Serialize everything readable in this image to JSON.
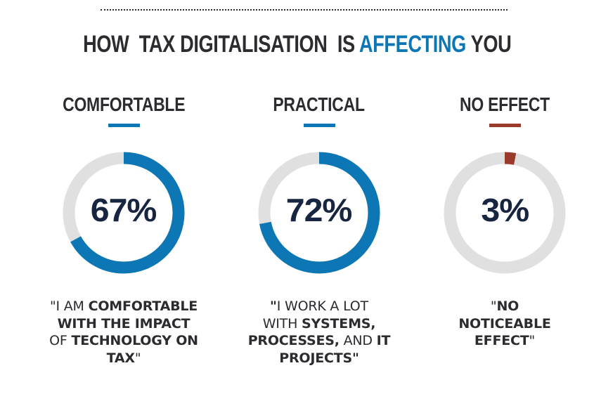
{
  "header": {
    "title_parts": [
      {
        "text": "HOW  TAX DIGITALISATION  IS ",
        "accent": false
      },
      {
        "text": "AFFECTING",
        "accent": true
      },
      {
        "text": " YOU",
        "accent": false
      }
    ]
  },
  "colors": {
    "accent_blue": "#0d77b5",
    "accent_brown": "#9a3a2a",
    "track_gray": "#e0e0e0",
    "heading_dark": "#2b2b30",
    "number_navy": "#172540"
  },
  "chart_data": {
    "type": "pie",
    "title": "HOW TAX DIGITALISATION IS AFFECTING YOU",
    "style": "donut-gauges",
    "series": [
      {
        "name": "COMFORTABLE",
        "value": 67,
        "label": "67%",
        "color": "#0d77b5",
        "quote_lines": [
          [
            {
              "t": "\"I AM ",
              "b": false
            },
            {
              "t": "COMFORTABLE",
              "b": true
            }
          ],
          [
            {
              "t": "WITH THE IMPACT",
              "b": true
            }
          ],
          [
            {
              "t": "OF ",
              "b": false
            },
            {
              "t": "TECHNOLOGY ON",
              "b": true
            }
          ],
          [
            {
              "t": "TAX",
              "b": true
            },
            {
              "t": "\"",
              "b": false
            }
          ]
        ]
      },
      {
        "name": "PRACTICAL",
        "value": 72,
        "label": "72%",
        "color": "#0d77b5",
        "quote_lines": [
          [
            {
              "t": "\"",
              "b": true
            },
            {
              "t": "I WORK A LOT",
              "b": false
            }
          ],
          [
            {
              "t": "WITH ",
              "b": false
            },
            {
              "t": "SYSTEMS,",
              "b": true
            }
          ],
          [
            {
              "t": "PROCESSES,",
              "b": true
            },
            {
              "t": " AND ",
              "b": false
            },
            {
              "t": "IT",
              "b": true
            }
          ],
          [
            {
              "t": "PROJECTS\"",
              "b": true
            }
          ]
        ]
      },
      {
        "name": "NO EFFECT",
        "value": 3,
        "label": "3%",
        "color": "#9a3a2a",
        "quote_lines": [
          [
            {
              "t": "\"",
              "b": false
            },
            {
              "t": "NO",
              "b": true
            }
          ],
          [
            {
              "t": "NOTICEABLE",
              "b": true
            }
          ],
          [
            {
              "t": "EFFECT",
              "b": true
            },
            {
              "t": "\"",
              "b": false
            }
          ]
        ]
      }
    ],
    "max": 100,
    "unit": "%"
  }
}
